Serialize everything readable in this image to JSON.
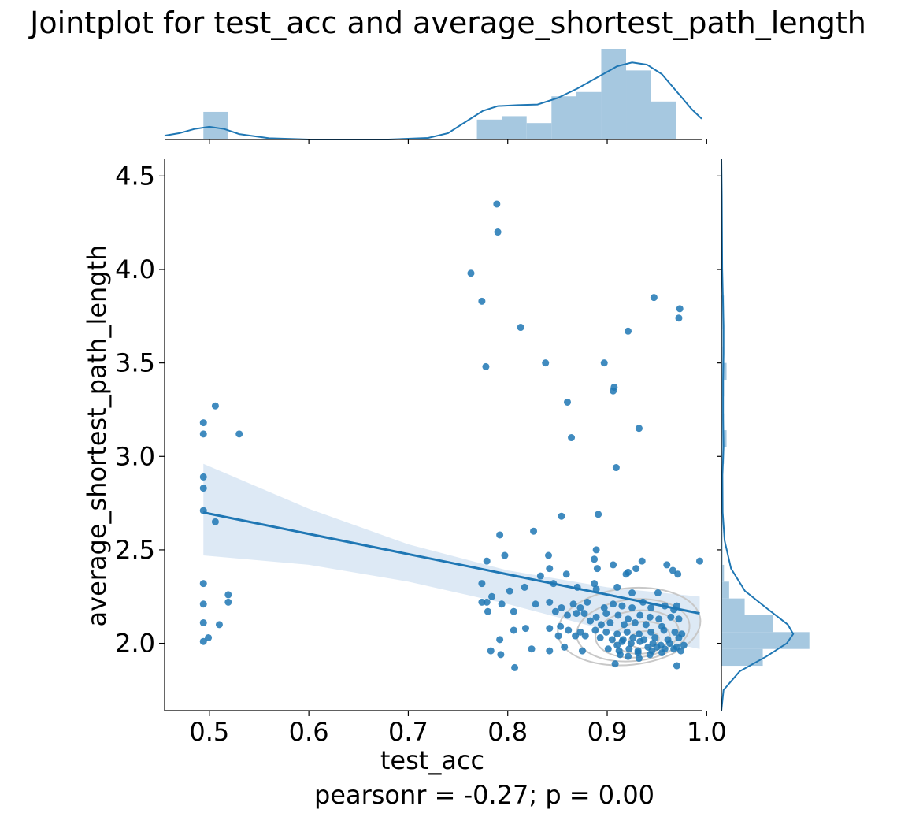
{
  "chart_data": {
    "type": "scatter",
    "title": "Jointplot for test_acc and average_shortest_path_length",
    "xlabel": "test_acc",
    "ylabel": "average_shortest_path_length",
    "annotation": "pearsonr = -0.27; p = 0.00",
    "xlim": [
      0.455,
      0.995
    ],
    "ylim": [
      1.64,
      4.59
    ],
    "x_ticks": [
      "0.5",
      "0.6",
      "0.7",
      "0.8",
      "0.9",
      "1.0"
    ],
    "y_ticks": [
      "2.0",
      "2.5",
      "3.0",
      "3.5",
      "4.0",
      "4.5"
    ],
    "grid": false,
    "colors": {
      "points": "#1f77b4",
      "regression_line": "#1f77b4",
      "confidence_band": "#c6dbef",
      "marginal_bars": "#a6c8e0",
      "marginal_kde": "#1f77b4",
      "contours": "#c8c8c8"
    },
    "series": [
      {
        "type": "scatter",
        "points": [
          [
            0.494,
            3.18
          ],
          [
            0.494,
            3.12
          ],
          [
            0.494,
            2.89
          ],
          [
            0.494,
            2.83
          ],
          [
            0.494,
            2.71
          ],
          [
            0.494,
            2.32
          ],
          [
            0.494,
            2.21
          ],
          [
            0.494,
            2.11
          ],
          [
            0.494,
            2.01
          ],
          [
            0.499,
            2.03
          ],
          [
            0.506,
            3.27
          ],
          [
            0.506,
            2.65
          ],
          [
            0.51,
            2.1
          ],
          [
            0.519,
            2.26
          ],
          [
            0.519,
            2.22
          ],
          [
            0.53,
            3.12
          ],
          [
            0.789,
            4.35
          ],
          [
            0.79,
            4.2
          ],
          [
            0.763,
            3.98
          ],
          [
            0.774,
            3.83
          ],
          [
            0.778,
            3.48
          ],
          [
            0.813,
            3.69
          ],
          [
            0.838,
            3.5
          ],
          [
            0.86,
            3.29
          ],
          [
            0.864,
            3.1
          ],
          [
            0.897,
            3.5
          ],
          [
            0.907,
            3.37
          ],
          [
            0.906,
            3.35
          ],
          [
            0.909,
            2.94
          ],
          [
            0.921,
            3.67
          ],
          [
            0.932,
            3.15
          ],
          [
            0.947,
            3.85
          ],
          [
            0.973,
            3.79
          ],
          [
            0.972,
            3.74
          ],
          [
            0.826,
            2.6
          ],
          [
            0.854,
            2.68
          ],
          [
            0.891,
            2.69
          ],
          [
            0.792,
            2.58
          ],
          [
            0.797,
            2.47
          ],
          [
            0.779,
            2.44
          ],
          [
            0.841,
            2.47
          ],
          [
            0.889,
            2.5
          ],
          [
            0.887,
            2.45
          ],
          [
            0.935,
            2.44
          ],
          [
            0.993,
            2.44
          ],
          [
            0.96,
            2.42
          ],
          [
            0.906,
            2.42
          ],
          [
            0.929,
            2.4
          ],
          [
            0.966,
            2.39
          ],
          [
            0.971,
            2.37
          ],
          [
            0.921,
            2.38
          ],
          [
            0.919,
            2.37
          ],
          [
            0.89,
            2.4
          ],
          [
            0.859,
            2.37
          ],
          [
            0.842,
            2.4
          ],
          [
            0.833,
            2.36
          ],
          [
            0.774,
            2.32
          ],
          [
            0.817,
            2.3
          ],
          [
            0.846,
            2.32
          ],
          [
            0.87,
            2.3
          ],
          [
            0.887,
            2.32
          ],
          [
            0.889,
            2.29
          ],
          [
            0.91,
            2.3
          ],
          [
            0.925,
            2.27
          ],
          [
            0.951,
            2.27
          ],
          [
            0.802,
            2.28
          ],
          [
            0.784,
            2.25
          ],
          [
            0.774,
            2.22
          ],
          [
            0.779,
            2.22
          ],
          [
            0.794,
            2.21
          ],
          [
            0.828,
            2.21
          ],
          [
            0.842,
            2.22
          ],
          [
            0.854,
            2.19
          ],
          [
            0.866,
            2.21
          ],
          [
            0.873,
            2.19
          ],
          [
            0.88,
            2.22
          ],
          [
            0.897,
            2.19
          ],
          [
            0.906,
            2.21
          ],
          [
            0.915,
            2.2
          ],
          [
            0.925,
            2.19
          ],
          [
            0.936,
            2.22
          ],
          [
            0.944,
            2.19
          ],
          [
            0.958,
            2.2
          ],
          [
            0.967,
            2.18
          ],
          [
            0.97,
            2.2
          ],
          [
            0.78,
            2.17
          ],
          [
            0.806,
            2.17
          ],
          [
            0.848,
            2.17
          ],
          [
            0.86,
            2.15
          ],
          [
            0.869,
            2.16
          ],
          [
            0.877,
            2.16
          ],
          [
            0.889,
            2.14
          ],
          [
            0.899,
            2.16
          ],
          [
            0.911,
            2.15
          ],
          [
            0.921,
            2.13
          ],
          [
            0.933,
            2.15
          ],
          [
            0.943,
            2.14
          ],
          [
            0.952,
            2.13
          ],
          [
            0.964,
            2.14
          ],
          [
            0.972,
            2.13
          ],
          [
            0.883,
            2.12
          ],
          [
            0.894,
            2.1
          ],
          [
            0.903,
            2.11
          ],
          [
            0.917,
            2.1
          ],
          [
            0.928,
            2.11
          ],
          [
            0.939,
            2.1
          ],
          [
            0.955,
            2.09
          ],
          [
            0.842,
            2.08
          ],
          [
            0.818,
            2.08
          ],
          [
            0.806,
            2.07
          ],
          [
            0.853,
            2.09
          ],
          [
            0.861,
            2.07
          ],
          [
            0.873,
            2.06
          ],
          [
            0.888,
            2.07
          ],
          [
            0.899,
            2.06
          ],
          [
            0.91,
            2.05
          ],
          [
            0.92,
            2.06
          ],
          [
            0.932,
            2.05
          ],
          [
            0.944,
            2.06
          ],
          [
            0.957,
            2.07
          ],
          [
            0.968,
            2.06
          ],
          [
            0.975,
            2.05
          ],
          [
            0.851,
            2.04
          ],
          [
            0.868,
            2.04
          ],
          [
            0.878,
            2.04
          ],
          [
            0.893,
            2.03
          ],
          [
            0.905,
            2.02
          ],
          [
            0.916,
            2.02
          ],
          [
            0.926,
            2.03
          ],
          [
            0.937,
            2.02
          ],
          [
            0.948,
            2.03
          ],
          [
            0.961,
            2.02
          ],
          [
            0.972,
            2.03
          ],
          [
            0.792,
            2.02
          ],
          [
            0.915,
            2.01
          ],
          [
            0.924,
            2.0
          ],
          [
            0.933,
            2.01
          ],
          [
            0.946,
            2.0
          ],
          [
            0.954,
            1.99
          ],
          [
            0.963,
            2.0
          ],
          [
            0.977,
            1.99
          ],
          [
            0.857,
            1.98
          ],
          [
            0.91,
            1.99
          ],
          [
            0.941,
            1.98
          ],
          [
            0.95,
            1.98
          ],
          [
            0.958,
            1.97
          ],
          [
            0.97,
            1.98
          ],
          [
            0.824,
            1.97
          ],
          [
            0.842,
            1.96
          ],
          [
            0.875,
            1.96
          ],
          [
            0.901,
            1.97
          ],
          [
            0.912,
            1.96
          ],
          [
            0.922,
            1.97
          ],
          [
            0.931,
            1.96
          ],
          [
            0.945,
            1.96
          ],
          [
            0.967,
            1.97
          ],
          [
            0.974,
            1.96
          ],
          [
            0.783,
            1.96
          ],
          [
            0.793,
            1.94
          ],
          [
            0.913,
            1.94
          ],
          [
            0.921,
            1.93
          ],
          [
            0.931,
            1.95
          ],
          [
            0.932,
            1.92
          ],
          [
            0.943,
            1.94
          ],
          [
            0.955,
            1.95
          ],
          [
            0.908,
            1.89
          ],
          [
            0.97,
            1.88
          ],
          [
            0.807,
            1.87
          ]
        ]
      },
      {
        "type": "regression_line",
        "points": [
          [
            0.494,
            2.7
          ],
          [
            0.993,
            2.16
          ]
        ]
      },
      {
        "type": "confidence_band",
        "upper": [
          [
            0.494,
            2.96
          ],
          [
            0.6,
            2.72
          ],
          [
            0.7,
            2.53
          ],
          [
            0.8,
            2.39
          ],
          [
            0.9,
            2.3
          ],
          [
            0.993,
            2.25
          ]
        ],
        "lower": [
          [
            0.494,
            2.47
          ],
          [
            0.6,
            2.42
          ],
          [
            0.7,
            2.33
          ],
          [
            0.8,
            2.21
          ],
          [
            0.9,
            2.07
          ],
          [
            0.993,
            1.97
          ]
        ]
      },
      {
        "type": "kde_contours",
        "ellipses": [
          {
            "cx": 0.937,
            "cy": 2.02,
            "rx": 0.015,
            "ry": 0.045
          },
          {
            "cx": 0.935,
            "cy": 2.03,
            "rx": 0.028,
            "ry": 0.085
          },
          {
            "cx": 0.93,
            "cy": 2.05,
            "rx": 0.042,
            "ry": 0.125
          },
          {
            "cx": 0.926,
            "cy": 2.07,
            "rx": 0.057,
            "ry": 0.165
          },
          {
            "cx": 0.922,
            "cy": 2.09,
            "rx": 0.072,
            "ry": 0.205
          }
        ]
      }
    ],
    "x_marginal_hist": {
      "bin_edges": [
        0.494,
        0.519,
        0.544,
        0.569,
        0.594,
        0.619,
        0.644,
        0.669,
        0.694,
        0.719,
        0.744,
        0.769,
        0.794,
        0.819,
        0.844,
        0.869,
        0.894,
        0.919,
        0.944,
        0.969,
        0.994
      ],
      "heights": [
        3.2,
        0,
        0,
        0,
        0,
        0,
        0,
        0,
        0,
        0,
        0,
        2.3,
        2.7,
        1.9,
        5.0,
        5.5,
        10.5,
        8.0,
        4.4,
        0,
        0
      ],
      "kde": [
        [
          0.455,
          0.12
        ],
        [
          0.47,
          0.2
        ],
        [
          0.485,
          0.33
        ],
        [
          0.5,
          0.4
        ],
        [
          0.515,
          0.33
        ],
        [
          0.53,
          0.17
        ],
        [
          0.56,
          0.04
        ],
        [
          0.6,
          0.0
        ],
        [
          0.68,
          0.0
        ],
        [
          0.72,
          0.05
        ],
        [
          0.74,
          0.2
        ],
        [
          0.76,
          0.6
        ],
        [
          0.775,
          0.9
        ],
        [
          0.79,
          1.05
        ],
        [
          0.81,
          1.08
        ],
        [
          0.83,
          1.1
        ],
        [
          0.85,
          1.3
        ],
        [
          0.87,
          1.6
        ],
        [
          0.89,
          1.95
        ],
        [
          0.91,
          2.3
        ],
        [
          0.925,
          2.42
        ],
        [
          0.94,
          2.35
        ],
        [
          0.955,
          2.05
        ],
        [
          0.97,
          1.5
        ],
        [
          0.985,
          0.95
        ],
        [
          0.995,
          0.65
        ]
      ]
    },
    "y_marginal_hist": {
      "bin_edges": [
        1.88,
        1.97,
        2.06,
        2.15,
        2.24,
        2.33,
        2.42,
        2.51,
        2.6,
        2.69,
        2.78,
        2.87,
        2.96,
        3.05,
        3.14,
        3.23,
        3.32,
        3.41,
        3.5,
        3.59,
        3.68,
        3.77,
        3.86
      ],
      "heights": [
        1.6,
        3.4,
        2.0,
        0.9,
        0.3,
        0.1,
        0.05,
        0.05,
        0.05,
        0.05,
        0.05,
        0.05,
        0.1,
        0.2,
        0.1,
        0.05,
        0.1,
        0.2,
        0.1,
        0.05,
        0.1,
        0.1
      ],
      "kde": [
        [
          1.64,
          0.0
        ],
        [
          1.75,
          0.1
        ],
        [
          1.85,
          0.85
        ],
        [
          1.93,
          2.1
        ],
        [
          2.0,
          3.05
        ],
        [
          2.05,
          3.35
        ],
        [
          2.1,
          3.1
        ],
        [
          2.18,
          2.2
        ],
        [
          2.28,
          1.1
        ],
        [
          2.4,
          0.45
        ],
        [
          2.55,
          0.15
        ],
        [
          2.7,
          0.06
        ],
        [
          2.9,
          0.05
        ],
        [
          3.05,
          0.1
        ],
        [
          3.2,
          0.08
        ],
        [
          3.4,
          0.08
        ],
        [
          3.55,
          0.1
        ],
        [
          3.7,
          0.1
        ],
        [
          3.85,
          0.07
        ],
        [
          4.0,
          0.04
        ],
        [
          4.2,
          0.03
        ],
        [
          4.4,
          0.02
        ],
        [
          4.59,
          0.0
        ]
      ]
    }
  }
}
